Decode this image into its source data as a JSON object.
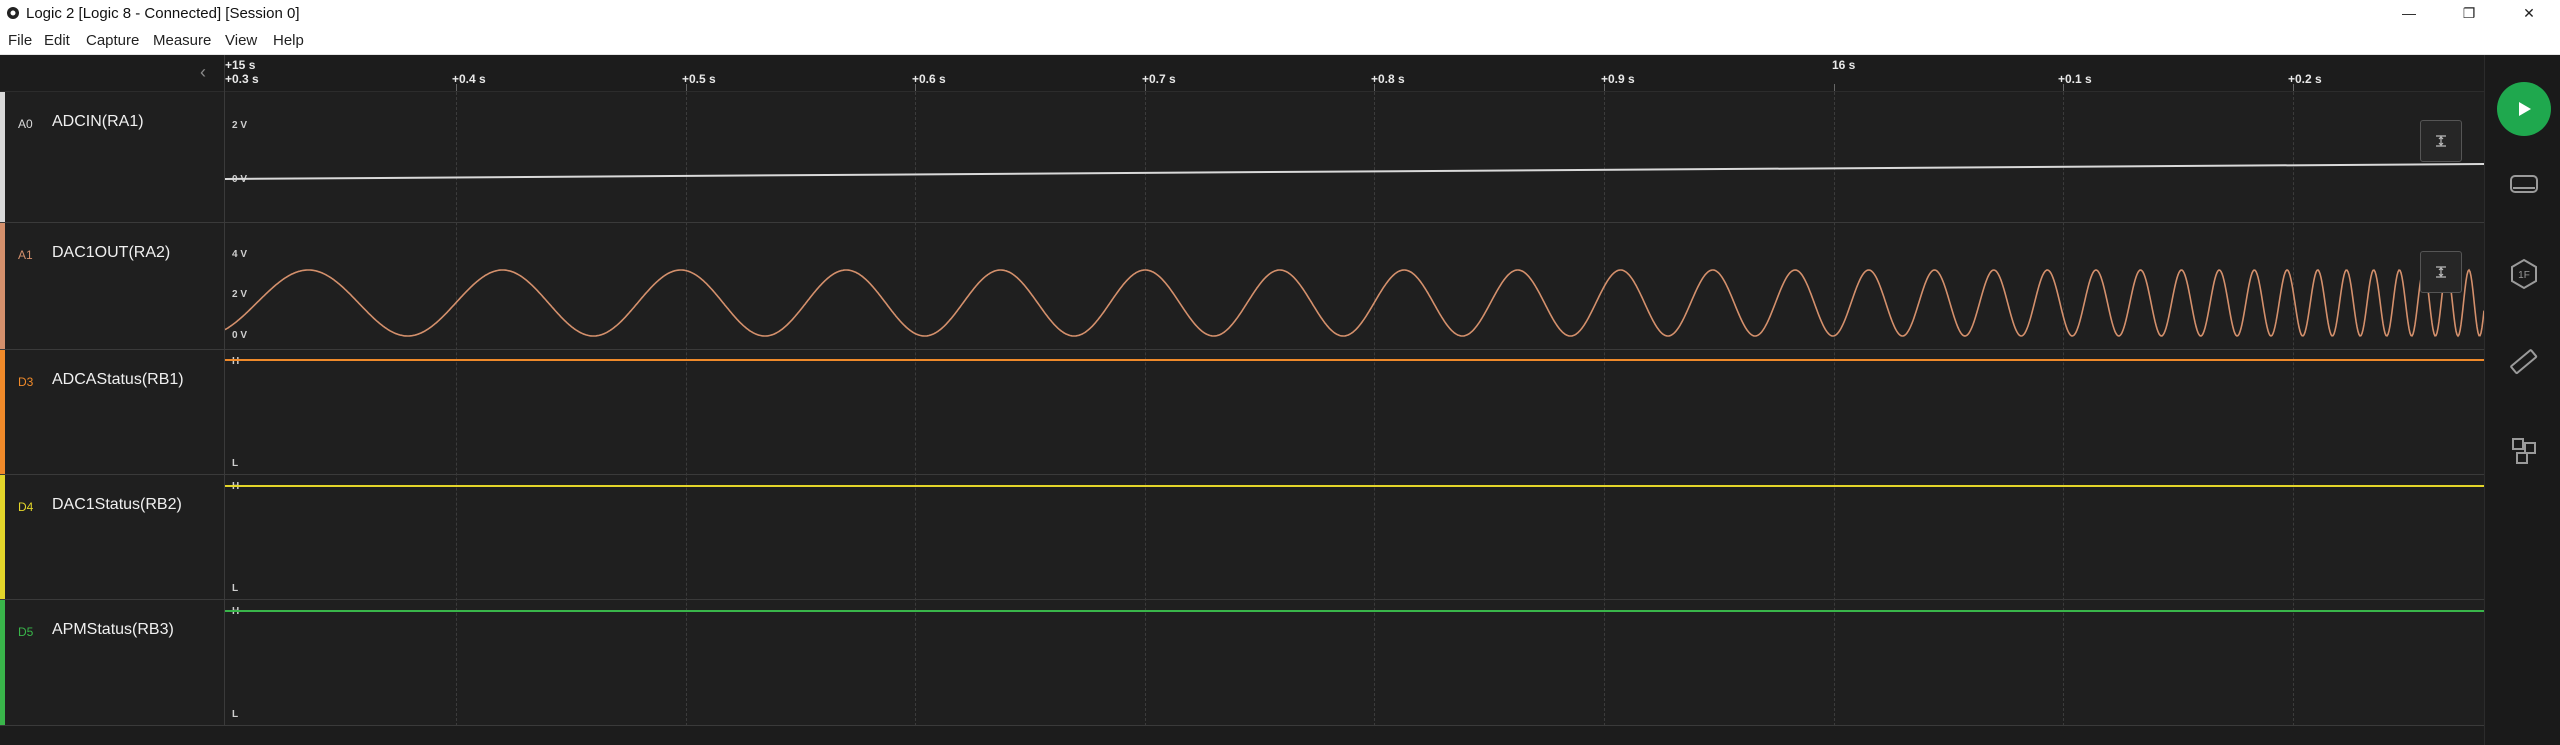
{
  "window": {
    "title": "Logic 2 [Logic 8 - Connected] [Session 0]",
    "minimize": "—",
    "maximize": "❐",
    "close": "✕"
  },
  "menu": [
    "File",
    "Edit",
    "Capture",
    "Measure",
    "View",
    "Help"
  ],
  "timeline": {
    "major_labels": [
      "+15 s",
      "16 s"
    ],
    "tick_labels": [
      "+0.3 s",
      "+0.4 s",
      "+0.5 s",
      "+0.6 s",
      "+0.7 s",
      "+0.8 s",
      "+0.9 s",
      "+0.1 s",
      "+0.2 s"
    ]
  },
  "channels": [
    {
      "id": "A0",
      "name": "ADCIN(RA1)",
      "color": "#d9d9d9",
      "rail_labels": [
        "2 V",
        "0 V"
      ]
    },
    {
      "id": "A1",
      "name": "DAC1OUT(RA2)",
      "color": "#d4906c",
      "rail_labels": [
        "4 V",
        "2 V",
        "0 V"
      ]
    },
    {
      "id": "D3",
      "name": "ADCAStatus(RB1)",
      "color": "#f08a2a",
      "rail_labels": [
        "H",
        "L"
      ]
    },
    {
      "id": "D4",
      "name": "DAC1Status(RB2)",
      "color": "#e3d52a",
      "rail_labels": [
        "H",
        "L"
      ]
    },
    {
      "id": "D5",
      "name": "APMStatus(RB3)",
      "color": "#39b54a",
      "rail_labels": [
        "H",
        "L"
      ]
    }
  ],
  "sidebar": {
    "icons": [
      "play-icon",
      "analyzers-icon",
      "extensions-icon",
      "measure-ruler-icon",
      "layout-icon"
    ],
    "accent": "#1fa84e"
  }
}
